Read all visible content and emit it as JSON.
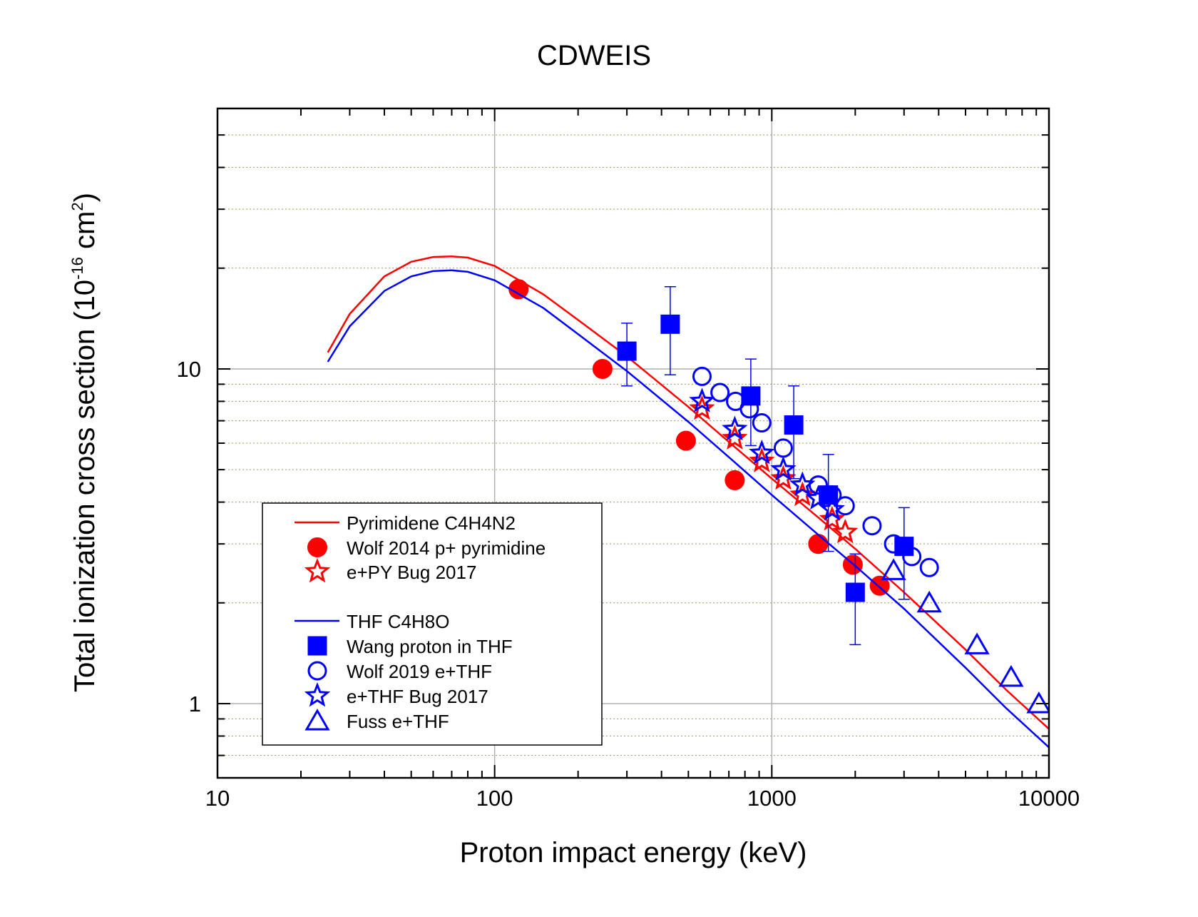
{
  "chart_data": {
    "type": "scatter",
    "title": "CDWEIS",
    "xlabel": "Proton impact energy (keV)",
    "ylabel": {
      "main": "Total ionization cross section (10",
      "exp1": "-16",
      "mid": " cm",
      "exp2": "2",
      "end": ")"
    },
    "x_scale": "log",
    "y_scale": "log",
    "xlim": [
      10,
      10000
    ],
    "ylim": [
      0.6,
      60
    ],
    "x_ticks": [
      {
        "value": 10,
        "label": "10"
      },
      {
        "value": 100,
        "label": "100"
      },
      {
        "value": 1000,
        "label": "1000"
      },
      {
        "value": 10000,
        "label": "10000"
      }
    ],
    "y_ticks": [
      {
        "value": 1,
        "label": "1"
      },
      {
        "value": 10,
        "label": "10"
      }
    ],
    "grid": true,
    "legend_position": "lower-left",
    "colors": {
      "red": "#ff0000",
      "blue": "#0000ff"
    },
    "series": [
      {
        "name": "Pyrimidene C4H4N2",
        "kind": "line",
        "color": "#ff0000",
        "x": [
          25,
          30,
          40,
          50,
          60,
          70,
          80,
          100,
          150,
          200,
          300,
          500,
          700,
          1000,
          1500,
          2000,
          3000,
          5000,
          7000,
          10000
        ],
        "y": [
          11.2,
          14.6,
          18.9,
          20.9,
          21.6,
          21.7,
          21.5,
          20.3,
          16.7,
          14.0,
          10.9,
          7.7,
          6.05,
          4.7,
          3.55,
          2.9,
          2.15,
          1.45,
          1.1,
          0.84
        ]
      },
      {
        "name": "Wolf 2014 p+ pyrimidine",
        "kind": "marker",
        "marker": "circle",
        "filled": true,
        "color": "#ff0000",
        "x": [
          122,
          245,
          490,
          735,
          1470,
          1960,
          2450
        ],
        "y": [
          17.3,
          10.0,
          6.1,
          4.65,
          3.0,
          2.6,
          2.25
        ]
      },
      {
        "name": "e+PY Bug 2017",
        "kind": "marker",
        "marker": "star",
        "filled": false,
        "color": "#ff0000",
        "x": [
          560,
          735,
          920,
          1100,
          1290,
          1650,
          1840
        ],
        "y": [
          7.6,
          6.2,
          5.3,
          4.7,
          4.2,
          3.55,
          3.25
        ]
      },
      {
        "name": "THF C4H8O",
        "kind": "line",
        "color": "#0000ff",
        "x": [
          25,
          30,
          40,
          50,
          60,
          70,
          80,
          100,
          150,
          200,
          300,
          500,
          700,
          1000,
          1500,
          2000,
          3000,
          5000,
          7000,
          10000
        ],
        "y": [
          10.5,
          13.4,
          17.1,
          18.9,
          19.6,
          19.7,
          19.5,
          18.4,
          15.2,
          12.7,
          9.85,
          6.95,
          5.45,
          4.2,
          3.15,
          2.58,
          1.92,
          1.28,
          0.97,
          0.74
        ]
      },
      {
        "name": "Wang proton in THF",
        "kind": "marker",
        "marker": "square",
        "filled": true,
        "color": "#0000ff",
        "x": [
          300,
          430,
          840,
          1200,
          1600,
          2000,
          3000
        ],
        "y": [
          11.3,
          13.6,
          8.3,
          6.8,
          4.2,
          2.15,
          2.95
        ],
        "yerr": [
          2.4,
          4.0,
          2.4,
          2.1,
          1.35,
          0.65,
          0.9
        ]
      },
      {
        "name": "Wolf 2019 e+THF",
        "kind": "marker",
        "marker": "circle",
        "filled": false,
        "color": "#0000ff",
        "x": [
          560,
          650,
          740,
          830,
          920,
          1100,
          1470,
          1650,
          1840,
          2300,
          2750,
          3200,
          3700
        ],
        "y": [
          9.5,
          8.5,
          8.0,
          7.6,
          6.9,
          5.8,
          4.5,
          4.2,
          3.9,
          3.4,
          3.0,
          2.75,
          2.55
        ]
      },
      {
        "name": "e+THF Bug 2017",
        "kind": "marker",
        "marker": "star",
        "filled": false,
        "color": "#0000ff",
        "x": [
          560,
          735,
          920,
          1100,
          1290,
          1470,
          1650
        ],
        "y": [
          8.0,
          6.6,
          5.6,
          5.0,
          4.5,
          4.1,
          3.8
        ]
      },
      {
        "name": "Fuss e+THF",
        "kind": "marker",
        "marker": "triangle",
        "filled": false,
        "color": "#0000ff",
        "x": [
          2750,
          3700,
          5500,
          7300,
          9200
        ],
        "y": [
          2.5,
          2.0,
          1.5,
          1.2,
          1.0
        ]
      }
    ]
  }
}
